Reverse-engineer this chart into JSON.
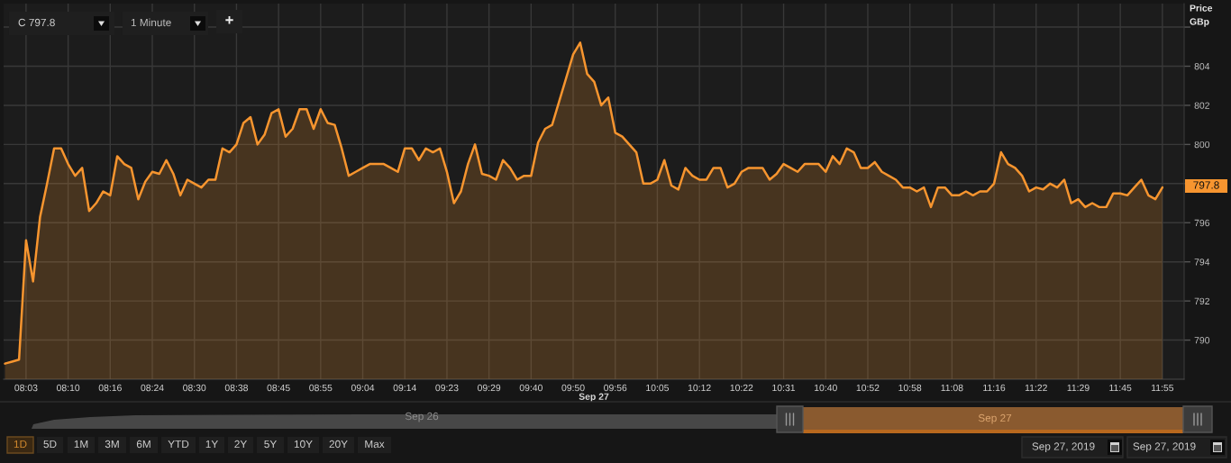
{
  "chart_data": {
    "type": "area",
    "categories": [
      null,
      null,
      null,
      "08:03",
      null,
      null,
      null,
      null,
      null,
      "08:10",
      null,
      null,
      null,
      null,
      null,
      "08:16",
      null,
      null,
      null,
      null,
      null,
      "08:24",
      null,
      null,
      null,
      null,
      null,
      "08:30",
      null,
      null,
      null,
      null,
      null,
      "08:38",
      null,
      null,
      null,
      null,
      null,
      "08:45",
      null,
      null,
      null,
      null,
      null,
      "08:55",
      null,
      null,
      null,
      null,
      null,
      "09:04",
      null,
      null,
      null,
      null,
      null,
      "09:14",
      null,
      null,
      null,
      null,
      null,
      "09:23",
      null,
      null,
      null,
      null,
      null,
      "09:29",
      null,
      null,
      null,
      null,
      null,
      "09:40",
      null,
      null,
      null,
      null,
      null,
      "09:50",
      null,
      null,
      null,
      null,
      null,
      "09:56",
      null,
      null,
      null,
      null,
      null,
      "10:05",
      null,
      null,
      null,
      null,
      null,
      "10:12",
      null,
      null,
      null,
      null,
      null,
      "10:22",
      null,
      null,
      null,
      null,
      null,
      "10:31",
      null,
      null,
      null,
      null,
      null,
      "10:40",
      null,
      null,
      null,
      null,
      null,
      "10:52",
      null,
      null,
      null,
      null,
      null,
      "10:58",
      null,
      null,
      null,
      null,
      null,
      "11:08",
      null,
      null,
      null,
      null,
      null,
      "11:16",
      null,
      null,
      null,
      null,
      null,
      "11:22",
      null,
      null,
      null,
      null,
      null,
      "11:29",
      null,
      null,
      null,
      null,
      null,
      "11:45",
      null,
      null,
      null,
      null,
      null,
      "11:55"
    ],
    "series": [
      {
        "color": "#f7952f",
        "values": [
          788.8,
          788.9,
          789.0,
          795.1,
          793.0,
          796.3,
          798.0,
          799.8,
          799.8,
          799.0,
          798.4,
          798.8,
          796.6,
          797.0,
          797.6,
          797.4,
          799.4,
          799.0,
          798.8,
          797.2,
          798.1,
          798.6,
          798.5,
          799.2,
          798.5,
          797.4,
          798.2,
          798.0,
          797.8,
          798.2,
          798.2,
          799.8,
          799.6,
          800.0,
          801.1,
          801.4,
          800.0,
          800.5,
          801.6,
          801.8,
          800.4,
          800.8,
          801.8,
          801.8,
          800.8,
          801.8,
          801.1,
          801.0,
          799.8,
          798.4,
          798.6,
          798.8,
          799.0,
          799.0,
          799.0,
          798.8,
          798.6,
          799.8,
          799.8,
          799.2,
          799.8,
          799.6,
          799.8,
          798.6,
          797.0,
          797.6,
          799.0,
          800.0,
          798.5,
          798.4,
          798.2,
          799.2,
          798.8,
          798.2,
          798.4,
          798.4,
          800.1,
          800.8,
          801.0,
          802.2,
          803.4,
          804.6,
          805.2,
          803.6,
          803.2,
          802.0,
          802.4,
          800.6,
          800.4,
          800.0,
          799.6,
          798.0,
          798.0,
          798.2,
          799.2,
          797.9,
          797.7,
          798.8,
          798.4,
          798.2,
          798.2,
          798.8,
          798.8,
          797.8,
          798.0,
          798.6,
          798.8,
          798.8,
          798.8,
          798.2,
          798.5,
          799.0,
          798.8,
          798.6,
          799.0,
          799.0,
          799.0,
          798.6,
          799.4,
          799.0,
          799.8,
          799.6,
          798.8,
          798.8,
          799.1,
          798.6,
          798.4,
          798.2,
          797.8,
          797.8,
          797.6,
          797.8,
          796.8,
          797.8,
          797.8,
          797.4,
          797.4,
          797.6,
          797.4,
          797.6,
          797.6,
          798.0,
          799.6,
          799.0,
          798.8,
          798.4,
          797.6,
          797.8,
          797.7,
          798.0,
          797.8,
          798.2,
          797.0,
          797.2,
          796.8,
          797.0,
          796.8,
          796.8,
          797.5,
          797.5,
          797.4,
          797.8,
          798.2,
          797.4,
          797.2,
          797.8
        ]
      }
    ],
    "xlabel": "Sep 27",
    "ylabel": "Price GBp",
    "ylim": [
      788.0,
      807.2
    ],
    "yticks": [
      790,
      792,
      794,
      796,
      {
        "value": 798,
        "label": null
      },
      800,
      802,
      804,
      {
        "value": 806,
        "label": null
      }
    ],
    "grid": true,
    "annotations": [
      "C 797.8",
      "1 Minute",
      "+",
      "1D",
      "5D",
      "1M",
      "3M",
      "6M",
      "YTD",
      "1Y",
      "2Y",
      "5Y",
      "10Y",
      "20Y",
      "Max",
      "Sep 26",
      "Sep 27",
      "Sep 27, 2019",
      "Sep 27, 2019",
      "797.8"
    ]
  }
}
